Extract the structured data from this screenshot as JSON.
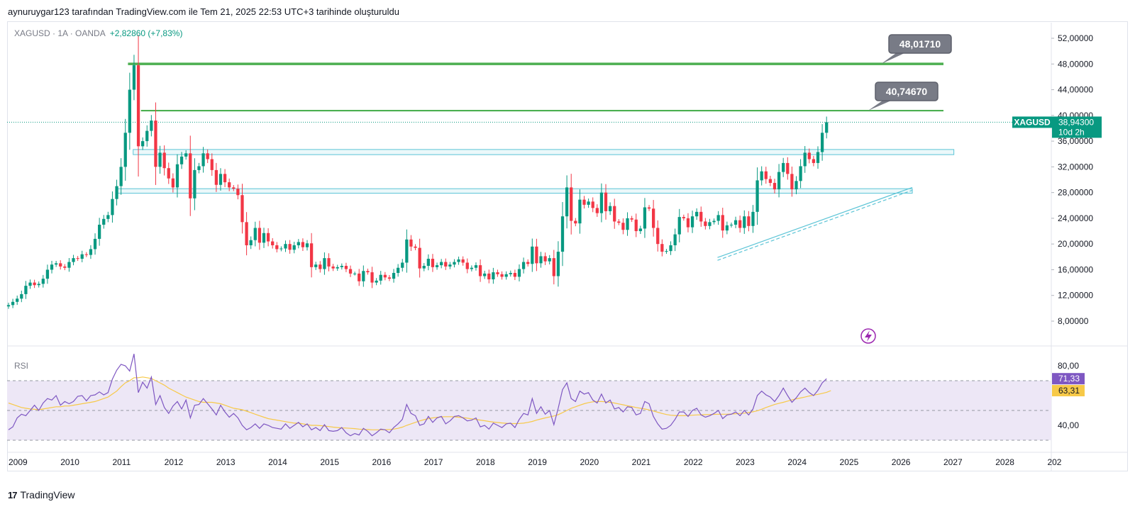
{
  "header": {
    "text": "aynuruygar123 tarafından TradingView.com ile Tem 21, 2025 22:53 UTC+3 tarihinde oluşturuldu"
  },
  "legend": {
    "symbol": "XAGUSD · 1A · OANDA",
    "change": "+2,82860 (+7,83%)"
  },
  "footer": {
    "brand": "TradingView",
    "logo": "17"
  },
  "rsi": {
    "title": "RSI"
  },
  "colors": {
    "up": "#089981",
    "down": "#f23645",
    "green_line": "#4caf50",
    "zone": "#5bc4d6",
    "rsi_line": "#7e57c2",
    "rsi_ma": "#f7c948",
    "rsi_band": "#ede7f6"
  },
  "chart_data": [
    {
      "type": "candlestick",
      "symbol": "XAGUSD",
      "timeframe": "1A",
      "source": "OANDA",
      "x_ticks": [
        "2009",
        "2010",
        "2011",
        "2012",
        "2013",
        "2014",
        "2015",
        "2016",
        "2017",
        "2018",
        "2019",
        "2020",
        "2021",
        "2022",
        "2023",
        "2024",
        "2025",
        "2026",
        "2027",
        "2028",
        "202"
      ],
      "y_ticks": [
        "52,00000",
        "48,00000",
        "44,00000",
        "40,00000",
        "36,00000",
        "32,00000",
        "28,00000",
        "24,00000",
        "20,00000",
        "16,00000",
        "12,00000",
        "8,00000"
      ],
      "ylim": [
        4.0,
        54.0
      ],
      "current_price_label": {
        "symbol": "XAGUSD",
        "price": "38,94300",
        "countdown": "10d 2h",
        "value": 38.943
      },
      "horizontal_lines": [
        {
          "value": 48.0171,
          "label": "48,01710",
          "from": 2011.3,
          "to": 2027.0
        },
        {
          "value": 40.7467,
          "label": "40,74670",
          "from": 2011.55,
          "to": 2027.0
        }
      ],
      "zones": [
        {
          "from_value": 33.9,
          "to_value": 34.7,
          "from": 2011.4,
          "to": 2027.2
        },
        {
          "from_value": 27.9,
          "to_value": 28.6,
          "from": 2011.1,
          "to": 2026.4
        }
      ],
      "trendline": {
        "start": [
          2022.65,
          17.9
        ],
        "end": [
          2026.4,
          28.8
        ]
      },
      "monthly": {
        "start": 2009.0,
        "step": 0.08333,
        "closes": [
          10.5,
          11,
          11.5,
          12.2,
          13.5,
          14,
          13.6,
          13.8,
          14.6,
          16,
          16.8,
          17,
          16.5,
          16.3,
          17.2,
          17.8,
          17.7,
          18.4,
          18.3,
          19.2,
          20.8,
          23,
          23.9,
          24.5,
          27,
          29,
          32,
          37.3,
          44,
          47.8,
          35.2,
          36,
          37.6,
          39.2,
          32,
          34.2,
          31.8,
          30.2,
          28.8,
          32.4,
          33.6,
          34.1,
          27.1,
          31.5,
          32.1,
          34.1,
          33.2,
          31.5,
          29.2,
          30.9,
          29.6,
          28.8,
          28.6,
          27.6,
          23.4,
          19.8,
          20.6,
          22.5,
          20.2,
          21.7,
          20.4,
          19.8,
          19.2,
          19.3,
          20,
          19.1,
          19.8,
          20.3,
          19.5,
          20.1,
          16.4,
          16.8,
          16.1,
          17.8,
          16.5,
          16.2,
          16.4,
          16.6,
          16.1,
          15.4,
          15.4,
          14.2,
          15.8,
          15.6,
          14,
          14.3,
          15.2,
          14.8,
          14.6,
          15.5,
          16.3,
          17.1,
          20.7,
          19.6,
          19.4,
          16.2,
          16.6,
          17.7,
          16.4,
          16.7,
          17.2,
          16.5,
          16.8,
          17.2,
          17.6,
          17.1,
          16.1,
          16.3,
          16.7,
          15,
          15.4,
          14.5,
          15.6,
          15.3,
          14.9,
          15.3,
          15.5,
          14.9,
          16.1,
          17.2,
          16.9,
          19.6,
          17,
          18.1,
          17.3,
          17.8,
          15,
          18.8,
          24.3,
          28.8,
          23.6,
          23.2,
          26.9,
          26.1,
          26.6,
          25.6,
          24.8,
          28,
          25.1,
          25.9,
          23.5,
          23.3,
          22.2,
          24,
          23.8,
          22,
          22.4,
          25.7,
          25.5,
          22.5,
          20,
          18.8,
          18.9,
          19.8,
          21.5,
          24.2,
          24,
          22.6,
          24.3,
          25,
          23.5,
          22.8,
          23.4,
          23.6,
          24.5,
          22.1,
          22.9,
          23,
          23.7,
          22.5,
          24.3,
          22.8,
          25,
          29.9,
          31.3,
          30.1,
          29.5,
          28.5,
          31.2,
          32.6,
          30.9,
          28.5,
          29.8,
          32.1,
          34.2,
          33.2,
          32.6,
          34.3,
          37.3,
          38.943
        ]
      }
    },
    {
      "type": "line",
      "title": "RSI",
      "ylim": [
        20,
        95
      ],
      "y_ticks": [
        "80,00",
        "40,00"
      ],
      "bands": {
        "upper": 70,
        "middle": 50,
        "lower": 30
      },
      "last_values": {
        "rsi": "71,33",
        "ma": "63,31"
      },
      "series": [
        {
          "values": [
            37,
            39,
            45,
            47.5,
            46.5,
            50,
            53.5,
            50,
            55,
            58,
            57,
            60,
            53.5,
            56,
            54.5,
            56,
            59.5,
            60,
            56.5,
            60,
            60.5,
            62.5,
            60.5,
            62,
            71,
            77,
            81,
            80,
            76.5,
            88,
            62,
            69,
            65,
            72.5,
            54,
            60,
            52,
            48,
            53,
            56,
            51,
            57,
            45,
            53.5,
            54,
            58,
            54.5,
            51,
            47,
            53.5,
            49,
            45.5,
            48,
            45,
            40,
            37,
            38.5,
            41,
            38,
            41,
            40,
            38.5,
            38,
            37.5,
            41,
            38,
            40,
            42,
            39,
            41,
            37,
            38.5,
            36.5,
            40.5,
            36.5,
            36,
            36.5,
            38.5,
            35,
            33,
            34.5,
            33.5,
            38,
            36,
            33,
            35,
            37.5,
            37,
            35,
            38.5,
            41,
            44,
            54,
            48,
            46.5,
            40,
            41,
            46,
            42,
            45,
            46,
            41,
            43,
            46,
            46.5,
            45,
            43,
            43.5,
            45,
            39,
            40,
            37.5,
            41.5,
            40,
            38.5,
            41,
            41.5,
            38.5,
            44,
            48,
            47,
            58,
            48,
            52.5,
            47.5,
            50,
            40.5,
            51.5,
            64,
            68.5,
            58,
            56,
            63,
            61,
            62,
            57,
            55,
            61,
            55,
            57,
            51,
            52,
            49,
            52.5,
            52,
            47,
            48,
            56,
            54.5,
            46,
            41,
            37.5,
            38,
            40,
            44,
            49,
            49,
            46,
            50,
            51.5,
            47,
            45.5,
            46.5,
            48,
            50,
            44.5,
            47,
            47.5,
            49,
            46.5,
            50,
            47,
            51,
            60,
            63,
            60.5,
            59,
            56,
            60,
            65,
            60,
            55.5,
            58.5,
            62.5,
            65,
            62,
            60,
            63.5,
            68.5,
            71.33
          ]
        },
        {
          "values": [
            55,
            54,
            53,
            52,
            51.5,
            51,
            50.8,
            50.5,
            51,
            51.5,
            52,
            52.5,
            52.5,
            53,
            53,
            53.5,
            54,
            54.5,
            55,
            55.5,
            56,
            57,
            58,
            59,
            61,
            63,
            66,
            68.5,
            70,
            72,
            72,
            72.5,
            72,
            71.5,
            70,
            68.5,
            67,
            65,
            63.5,
            62,
            60.5,
            59,
            58,
            57,
            56,
            55.5,
            55.5,
            55.5,
            55,
            54.5,
            53.5,
            52.5,
            51.5,
            51,
            50.5,
            49.5,
            48.5,
            47.5,
            46.5,
            45.5,
            44.5,
            44,
            43.5,
            43,
            42.5,
            42,
            41.5,
            41.5,
            41,
            40.5,
            40,
            40,
            39.8,
            39.5,
            39.2,
            38.8,
            38.5,
            38.3,
            38.2,
            38,
            37.8,
            37.5,
            37.3,
            37.2,
            37,
            37,
            37,
            37.1,
            37.2,
            37.5,
            38,
            38.8,
            40,
            41,
            42,
            43,
            43.8,
            44.5,
            45,
            45.4,
            45.7,
            45.8,
            45.8,
            45.7,
            45.5,
            45.2,
            44.8,
            44.4,
            44,
            43.5,
            43.1,
            42.6,
            42.2,
            41.9,
            41.6,
            41.4,
            41.2,
            41.2,
            41.3,
            41.5,
            42,
            42.6,
            43.5,
            44.3,
            45,
            45.6,
            46.3,
            47.2,
            48.5,
            50,
            51.5,
            52.5,
            53.5,
            54.5,
            55.3,
            55.8,
            56,
            56,
            55.8,
            55.5,
            55,
            54.4,
            53.8,
            53.2,
            52.6,
            52,
            51.5,
            51,
            50.4,
            49.6,
            48.8,
            48,
            47.3,
            46.8,
            46.6,
            46.5,
            46.5,
            46.6,
            46.8,
            47,
            47.1,
            47.2,
            47.3,
            47.4,
            47.5,
            47.5,
            47.5,
            47.6,
            47.8,
            48,
            48.2,
            48.6,
            49.1,
            49.8,
            50.8,
            52,
            53,
            54,
            54.8,
            55.5,
            56.3,
            57.1,
            57.8,
            58.4,
            59,
            59.7,
            60.3,
            60.8,
            61.5,
            62.2,
            63.31
          ]
        }
      ]
    }
  ]
}
